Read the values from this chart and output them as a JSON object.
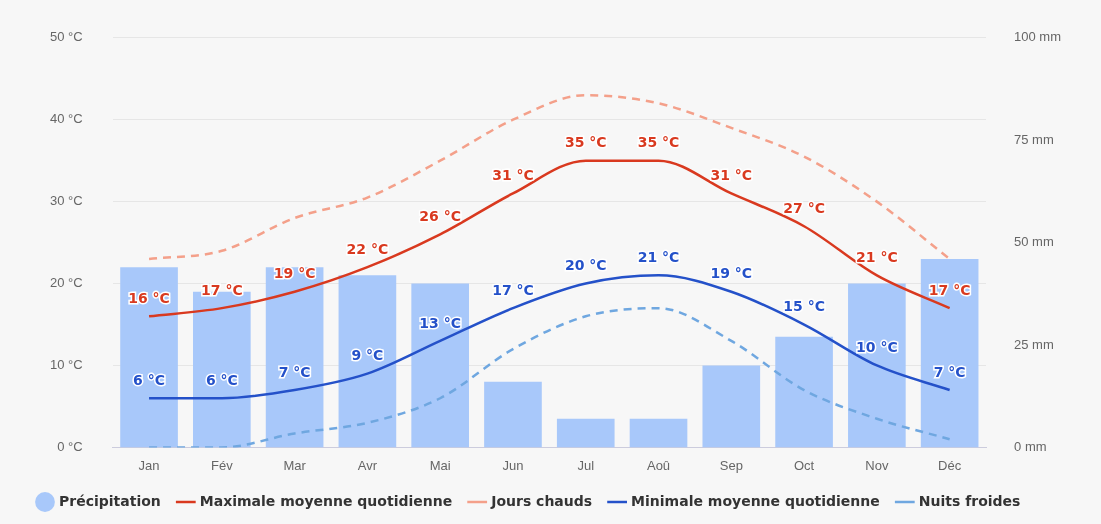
{
  "chart_data": {
    "type": "bar",
    "categories": [
      "Jan",
      "Fév",
      "Mar",
      "Avr",
      "Mai",
      "Jun",
      "Jul",
      "Aoû",
      "Sep",
      "Oct",
      "Nov",
      "Déc"
    ],
    "series": [
      {
        "name": "Précipitation",
        "axis": "y2",
        "color": "#a8c8fa",
        "values": [
          44,
          38,
          44,
          42,
          40,
          16,
          7,
          7,
          20,
          27,
          40,
          46
        ]
      },
      {
        "name": "Maximale moyenne quotidienne",
        "type": "line",
        "color": "#d9391f",
        "line_style": "solid",
        "values": [
          16,
          17,
          19,
          22,
          26,
          31,
          35,
          35,
          31,
          27,
          21,
          17
        ],
        "value_labels": [
          "16 °C",
          "17 °C",
          "19 °C",
          "22 °C",
          "26 °C",
          "31 °C",
          "35 °C",
          "35 °C",
          "31 °C",
          "27 °C",
          "21 °C",
          "17 °C"
        ]
      },
      {
        "name": "Jours chauds",
        "type": "line",
        "color": "#f4a08a",
        "line_style": "dashed",
        "values": [
          23,
          24,
          28,
          30.5,
          35,
          40,
          43,
          42,
          39,
          35.5,
          30,
          23
        ]
      },
      {
        "name": "Minimale moyenne quotidienne",
        "type": "line",
        "color": "#2451c9",
        "line_style": "solid",
        "values": [
          6,
          6,
          7,
          9,
          13,
          17,
          20,
          21,
          19,
          15,
          10,
          7
        ],
        "value_labels": [
          "6 °C",
          "6 °C",
          "7 °C",
          "9 °C",
          "13 °C",
          "17 °C",
          "20 °C",
          "21 °C",
          "19 °C",
          "15 °C",
          "10 °C",
          "7 °C"
        ]
      },
      {
        "name": "Nuits froides",
        "type": "line",
        "color": "#6fa7e0",
        "line_style": "dashed",
        "values": [
          0,
          0,
          1.7,
          3,
          6,
          12,
          16,
          17,
          13,
          7,
          3.5,
          1
        ]
      }
    ],
    "ylim": [
      0,
      50
    ],
    "yticks": [
      {
        "value": 0,
        "label": "0 °C"
      },
      {
        "value": 10,
        "label": "10 °C"
      },
      {
        "value": 20,
        "label": "20 °C"
      },
      {
        "value": 30,
        "label": "30 °C"
      },
      {
        "value": 40,
        "label": "40 °C"
      },
      {
        "value": 50,
        "label": "50 °C"
      }
    ],
    "y2lim": [
      0,
      100
    ],
    "y2ticks": [
      {
        "value": 0,
        "label": "0 mm"
      },
      {
        "value": 25,
        "label": "25 mm"
      },
      {
        "value": 50,
        "label": "50 mm"
      },
      {
        "value": 75,
        "label": "75 mm"
      },
      {
        "value": 100,
        "label": "100 mm"
      }
    ],
    "grid": "y",
    "legend": "bottom",
    "marker": "none"
  }
}
